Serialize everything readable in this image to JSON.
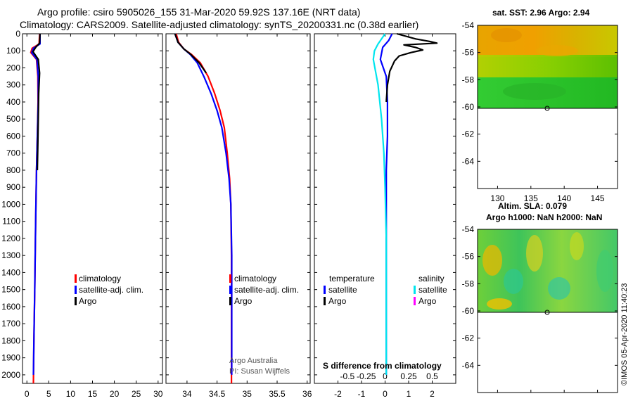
{
  "header": {
    "line1": "Argo profile: csiro 5905026_155 31-Mar-2020 59.92S 137.16E (NRT data)",
    "line2": "Climatology: CARS2009. Satellite-adjusted climatology: synTS_20200331.nc (0.38d earlier)"
  },
  "colors": {
    "climatology": "#ff0000",
    "satellite": "#0000ff",
    "argo": "#000000",
    "sat_salinity": "#00e5ee",
    "argo_salinity": "#ff00ff"
  },
  "chart_data": [
    {
      "type": "line",
      "name": "temperature-profile",
      "ylim": [
        2050,
        0
      ],
      "xlim": [
        -1,
        31
      ],
      "xticks": [
        "0",
        "5",
        "10",
        "15",
        "20",
        "25",
        "30"
      ],
      "xtick_values": [
        0,
        5,
        10,
        15,
        20,
        25,
        30
      ],
      "yticks": [
        "0",
        "100",
        "200",
        "300",
        "400",
        "500",
        "600",
        "700",
        "800",
        "900",
        "1000",
        "1100",
        "1200",
        "1300",
        "1400",
        "1500",
        "1600",
        "1700",
        "1800",
        "1900",
        "2000"
      ],
      "ytick_values": [
        0,
        100,
        200,
        300,
        400,
        500,
        600,
        700,
        800,
        900,
        1000,
        1100,
        1200,
        1300,
        1400,
        1500,
        1600,
        1700,
        1800,
        1900,
        2000
      ],
      "legend": [
        "climatology",
        "satellite-adj. clim.",
        "Argo"
      ],
      "series": [
        {
          "name": "climatology",
          "color": "#ff0000",
          "x": [
            2.9,
            2.8,
            1.2,
            0.9,
            2.2,
            2.5,
            2.55,
            2.4,
            2.2,
            2.0,
            1.8,
            1.6,
            1.5
          ],
          "y": [
            0,
            60,
            85,
            110,
            150,
            250,
            400,
            600,
            800,
            1100,
            1500,
            1800,
            2050
          ]
        },
        {
          "name": "satellite-adj. clim.",
          "color": "#0000ff",
          "x": [
            3.0,
            3.0,
            1.5,
            1.1,
            2.3,
            2.6,
            2.6,
            2.4,
            2.2,
            2.0,
            1.8,
            1.6,
            1.5
          ],
          "y": [
            0,
            60,
            85,
            110,
            150,
            250,
            400,
            600,
            800,
            1100,
            1500,
            1800,
            2000
          ]
        },
        {
          "name": "Argo",
          "color": "#000000",
          "x": [
            3.0,
            2.9,
            2.0,
            1.4,
            2.6,
            2.9,
            2.7,
            2.6,
            2.5,
            2.4
          ],
          "y": [
            0,
            55,
            80,
            105,
            150,
            230,
            350,
            500,
            650,
            800
          ]
        }
      ]
    },
    {
      "type": "line",
      "name": "salinity-profile",
      "ylim": [
        2050,
        0
      ],
      "xlim": [
        33.65,
        36.05
      ],
      "xticks": [
        "34",
        "34.5",
        "35",
        "35.5",
        "36"
      ],
      "xtick_values": [
        34,
        34.5,
        35,
        35.5,
        36
      ],
      "legend": [
        "climatology",
        "satellite-adj. clim.",
        "Argo"
      ],
      "credit": [
        "Argo Australia",
        "PI: Susan Wijffels"
      ],
      "series": [
        {
          "name": "climatology",
          "color": "#ff0000",
          "x": [
            33.82,
            33.86,
            33.95,
            34.07,
            34.22,
            34.35,
            34.46,
            34.55,
            34.62,
            34.67,
            34.71,
            34.73,
            34.74,
            34.74,
            34.74
          ],
          "y": [
            0,
            50,
            90,
            120,
            170,
            250,
            350,
            450,
            550,
            700,
            850,
            1000,
            1300,
            1700,
            2050
          ]
        },
        {
          "name": "satellite-adj. clim.",
          "color": "#0000ff",
          "x": [
            33.8,
            33.85,
            33.95,
            34.05,
            34.17,
            34.28,
            34.4,
            34.5,
            34.58,
            34.65,
            34.7,
            34.73,
            34.745,
            34.745,
            34.745
          ],
          "y": [
            0,
            50,
            90,
            120,
            170,
            250,
            350,
            450,
            550,
            700,
            850,
            1000,
            1300,
            1700,
            2000
          ]
        },
        {
          "name": "Argo",
          "color": "#000000",
          "x": [
            33.8,
            33.85,
            33.95,
            34.06,
            34.2,
            34.32
          ],
          "y": [
            0,
            50,
            90,
            120,
            170,
            230
          ]
        }
      ]
    },
    {
      "type": "line",
      "name": "difference-profile",
      "ylim": [
        2050,
        0
      ],
      "xlim": [
        -3,
        3
      ],
      "xticks_outer": [
        "-2",
        "-1",
        "0",
        "1",
        "2"
      ],
      "xticks_outer_values": [
        -2,
        -1,
        0,
        1,
        2
      ],
      "xticks_inner": [
        "-0.5",
        "-0.25",
        "0",
        "0.25",
        "0.5"
      ],
      "xticks_inner_values": [
        -1.6,
        -0.8,
        0,
        1.0,
        2.0
      ],
      "xlabel": "S difference from climatology",
      "legend": {
        "temperature_title": "temperature",
        "salinity_title": "salinity",
        "entries": [
          "satellite",
          "Argo",
          "satellite",
          "Argo"
        ]
      },
      "series": [
        {
          "name": "T satellite",
          "color": "#0000ff",
          "x": [
            0.3,
            0.15,
            -0.1,
            -0.2,
            0.05,
            0.1,
            0.1,
            0.05,
            0.05,
            0.05,
            0.05,
            0.05,
            0.05
          ],
          "y": [
            0,
            40,
            80,
            150,
            250,
            400,
            600,
            800,
            1000,
            1300,
            1600,
            1900,
            2000
          ]
        },
        {
          "name": "T Argo",
          "color": "#000000",
          "x": [
            0.5,
            1.3,
            1.9,
            2.2,
            0.8,
            1.3,
            1.6,
            1.1,
            0.6,
            0.4,
            0.2,
            0.1,
            0.05
          ],
          "y": [
            0,
            30,
            45,
            55,
            65,
            80,
            95,
            110,
            130,
            160,
            220,
            300,
            400
          ]
        },
        {
          "name": "S satellite",
          "color": "#00e5ee",
          "x": [
            0.0,
            -0.2,
            -0.3,
            -0.45,
            -0.5,
            -0.3,
            -0.15,
            -0.05,
            0.0,
            0.05,
            0.05,
            0.05
          ],
          "y": [
            0,
            40,
            60,
            100,
            150,
            300,
            500,
            700,
            900,
            1200,
            1600,
            2000
          ]
        }
      ]
    },
    {
      "type": "heatmap",
      "name": "sst-map",
      "title": "sat. SST: 2.96 Argo: 2.94",
      "yticks": [
        "-54",
        "-56",
        "-58",
        "-60",
        "-62",
        "-64"
      ],
      "ytick_values": [
        -54,
        -56,
        -58,
        -60,
        -62,
        -64
      ],
      "xticks": [
        "130",
        "135",
        "140",
        "145"
      ],
      "xtick_values": [
        130,
        135,
        140,
        145
      ],
      "xlim": [
        127,
        148
      ],
      "ylim": [
        -66,
        -54
      ]
    },
    {
      "type": "heatmap",
      "name": "sla-map",
      "title_line1": "Altim. SLA: 0.079",
      "title_line2": "Argo h1000: NaN h2000: NaN",
      "yticks": [
        "-54",
        "-56",
        "-58",
        "-60",
        "-62",
        "-64"
      ],
      "ytick_values": [
        -54,
        -56,
        -58,
        -60,
        -62,
        -64
      ],
      "ylim": [
        -66,
        -54
      ]
    }
  ],
  "credit_vertical": "©IMOS 05-Apr-2020 11:40:23"
}
